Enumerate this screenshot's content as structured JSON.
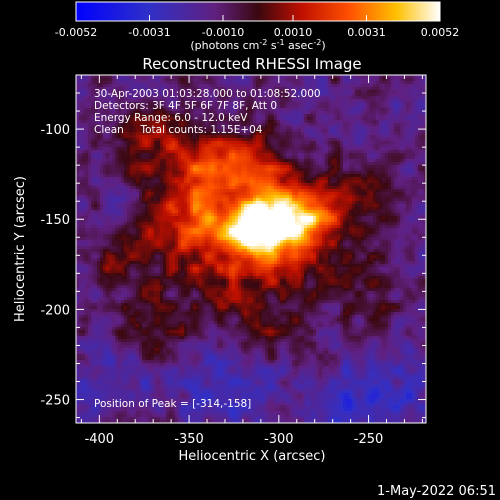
{
  "chart_data": {
    "type": "heatmap",
    "title": "Reconstructed RHESSI Image",
    "xlabel": "Heliocentric X (arcsec)",
    "ylabel": "Heliocentric Y (arcsec)",
    "xlim": [
      -413,
      -218
    ],
    "ylim": [
      -263,
      -70
    ],
    "x_ticks": [
      -400,
      -350,
      -300,
      -250
    ],
    "y_ticks": [
      -100,
      -150,
      -200,
      -250
    ],
    "colorbar": {
      "range": [
        -0.0052,
        0.0052
      ],
      "ticks": [
        -0.0052,
        -0.0031,
        -0.001,
        0.001,
        0.0031,
        0.0052
      ],
      "tick_labels": [
        "-0.0052",
        "-0.0031",
        "-0.0010",
        "0.0010",
        "0.0031",
        "0.0052"
      ],
      "units": "(photons cm",
      "units_sup1": "-2",
      "units_mid": " s",
      "units_sup2": "-1",
      "units_end": " asec",
      "units_sup3": "-2",
      "units_close": ")"
    },
    "annotations": [
      "30-Apr-2003 01:03:28.000 to 01:08:52.000",
      "Detectors: 3F 4F 5F 6F 7F 8F, Att 0",
      "Energy Range: 6.0 - 12.0 keV",
      "Clean     Total counts: 1.15E+04"
    ],
    "peak_label": "Position of Peak = [-314,-158]",
    "peak": [
      -314,
      -158
    ],
    "sources": [
      {
        "x": -314,
        "y": -158,
        "amp": 0.0054,
        "sx": 14,
        "sy": 10
      },
      {
        "x": -300,
        "y": -145,
        "amp": 0.0042,
        "sx": 14,
        "sy": 12
      },
      {
        "x": -283,
        "y": -150,
        "amp": 0.003,
        "sx": 12,
        "sy": 10
      },
      {
        "x": -340,
        "y": -140,
        "amp": 0.0027,
        "sx": 18,
        "sy": 14
      },
      {
        "x": -355,
        "y": -160,
        "amp": 0.0022,
        "sx": 16,
        "sy": 14
      },
      {
        "x": -345,
        "y": -115,
        "amp": 0.0022,
        "sx": 18,
        "sy": 12
      },
      {
        "x": -315,
        "y": -120,
        "amp": 0.0023,
        "sx": 16,
        "sy": 12
      },
      {
        "x": -295,
        "y": -175,
        "amp": 0.002,
        "sx": 16,
        "sy": 12
      },
      {
        "x": -330,
        "y": -185,
        "amp": 0.0017,
        "sx": 18,
        "sy": 14
      },
      {
        "x": -260,
        "y": -140,
        "amp": 0.0016,
        "sx": 16,
        "sy": 16
      },
      {
        "x": -375,
        "y": -105,
        "amp": 0.0015,
        "sx": 16,
        "sy": 14
      },
      {
        "x": -370,
        "y": -210,
        "amp": 0.0013,
        "sx": 14,
        "sy": 14
      },
      {
        "x": -390,
        "y": -175,
        "amp": 0.0012,
        "sx": 14,
        "sy": 12
      },
      {
        "x": -300,
        "y": -210,
        "amp": 0.0011,
        "sx": 16,
        "sy": 12
      },
      {
        "x": -250,
        "y": -185,
        "amp": 0.001,
        "sx": 14,
        "sy": 14
      },
      {
        "x": -250,
        "y": -250,
        "amp": -0.002,
        "sx": 22,
        "sy": 14
      },
      {
        "x": -330,
        "y": -245,
        "amp": -0.0012,
        "sx": 20,
        "sy": 14
      },
      {
        "x": -390,
        "y": -240,
        "amp": -0.001,
        "sx": 20,
        "sy": 14
      }
    ]
  },
  "footer_timestamp": "1-May-2022 06:51"
}
